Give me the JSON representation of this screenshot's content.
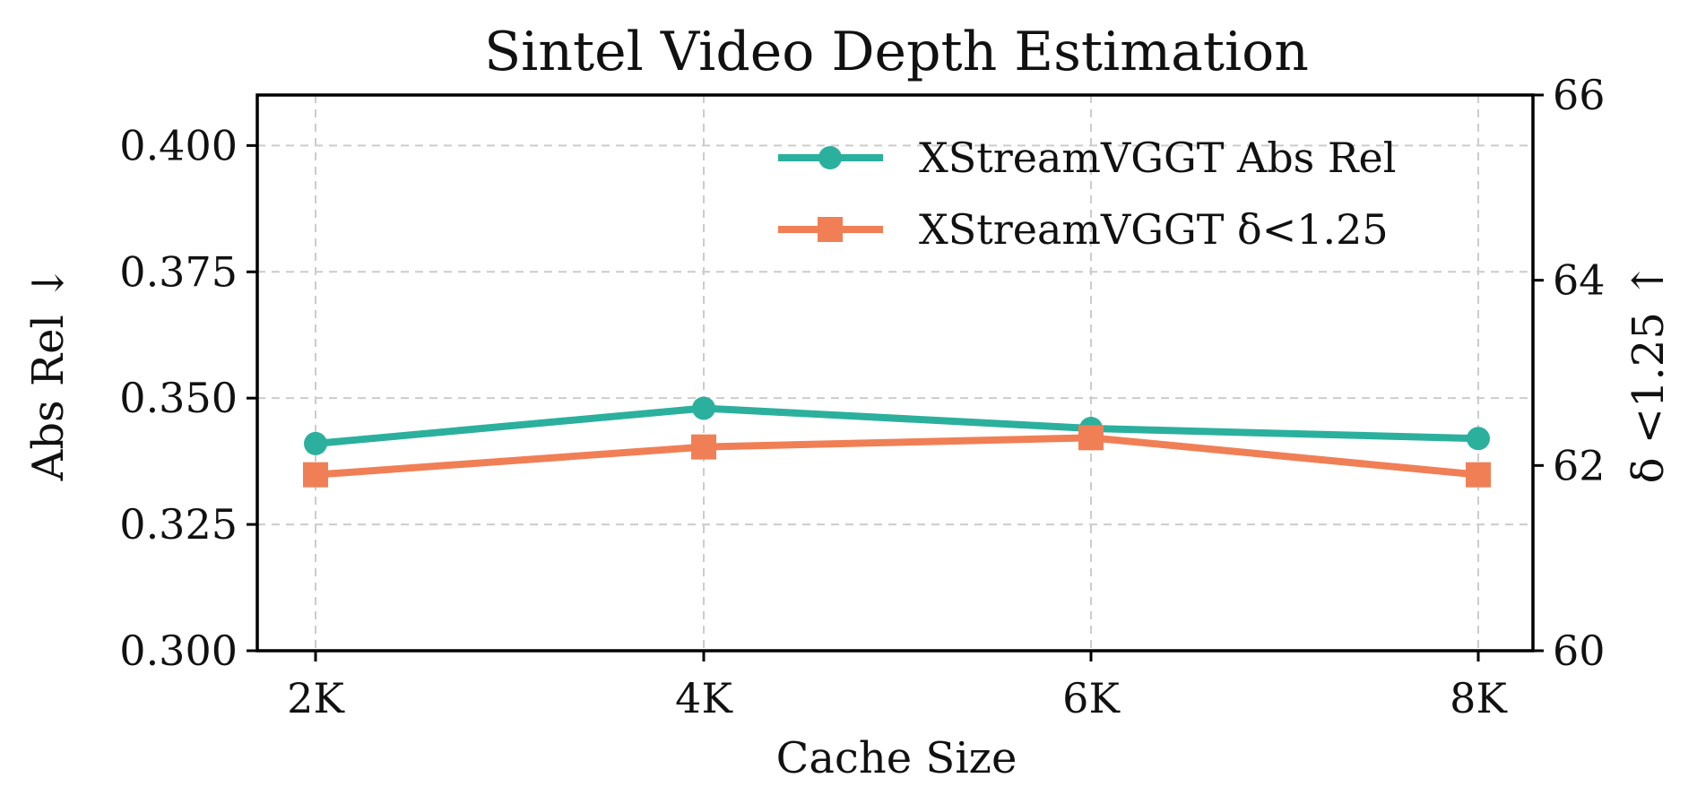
{
  "chart_data": {
    "type": "line",
    "title": "Sintel Video Depth Estimation",
    "xlabel": "Cache Size",
    "ylabel_left": "Abs Rel ↓",
    "ylabel_right": "δ <1.25 ↑",
    "categories": [
      "2K",
      "4K",
      "6K",
      "8K"
    ],
    "ylim_left": [
      0.3,
      0.41
    ],
    "yticks_left": [
      "0.300",
      "0.325",
      "0.350",
      "0.375",
      "0.400"
    ],
    "ylim_right": [
      60,
      66
    ],
    "yticks_right": [
      "60",
      "62",
      "64",
      "66"
    ],
    "grid": true,
    "legend_position": "top-right",
    "series": [
      {
        "name": "XStreamVGGT Abs Rel",
        "axis": "left",
        "marker": "circle",
        "color": "#2bb09d",
        "values": [
          0.341,
          0.348,
          0.344,
          0.342
        ]
      },
      {
        "name": "XStreamVGGT δ<1.25",
        "axis": "right",
        "marker": "square",
        "color": "#f07f56",
        "values": [
          61.9,
          62.2,
          62.3,
          61.9
        ]
      }
    ]
  }
}
